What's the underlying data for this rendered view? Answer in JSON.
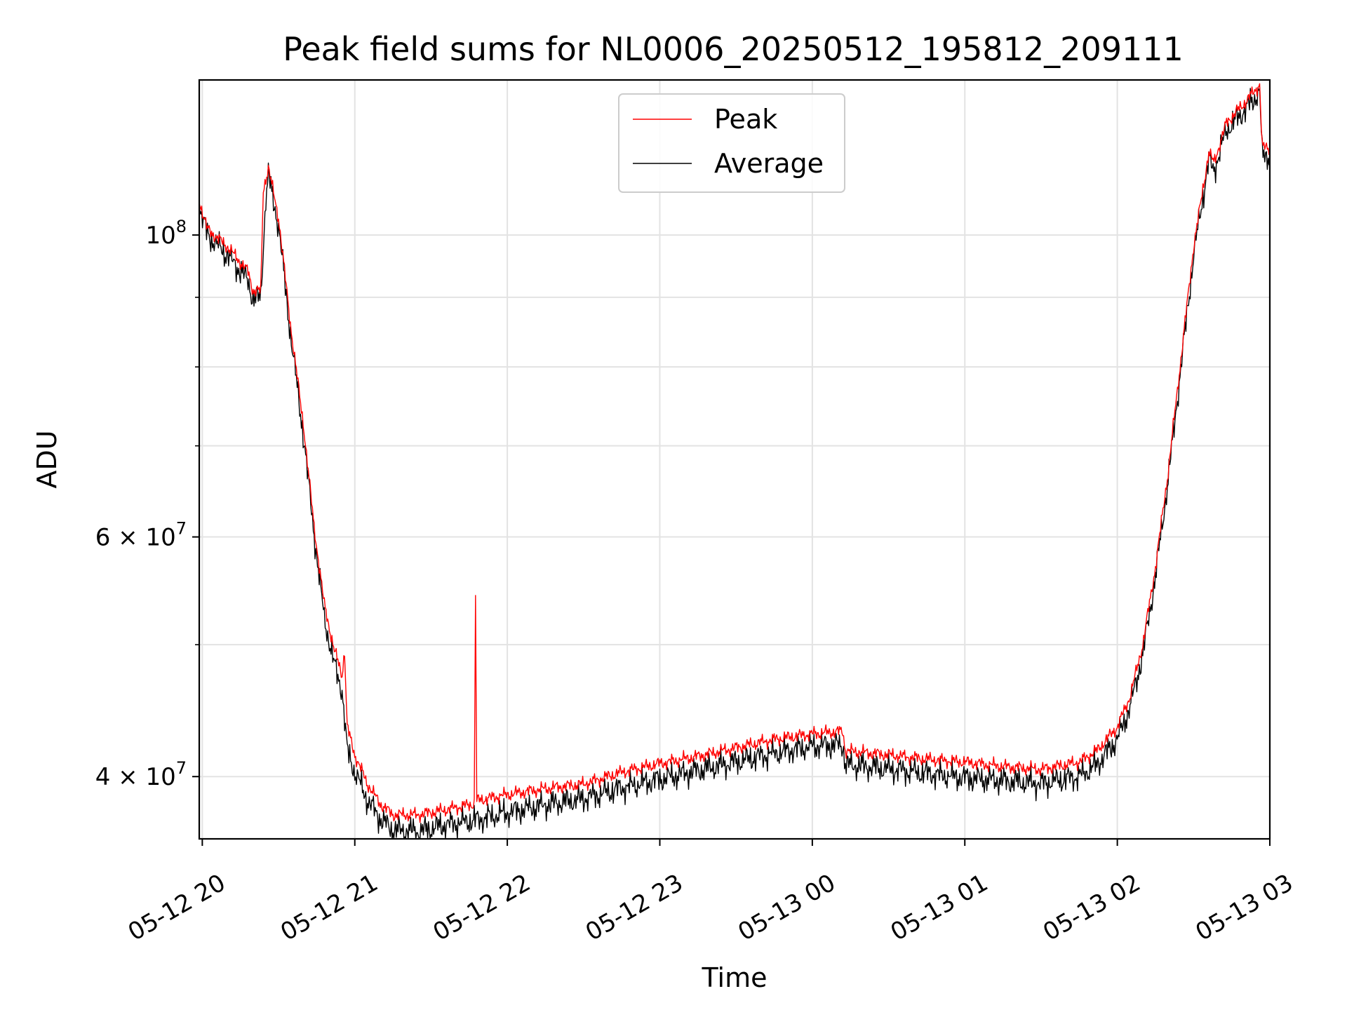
{
  "chart_data": {
    "type": "line",
    "title": "Peak field sums for NL0006_20250512_195812_209111",
    "xlabel": "Time",
    "ylabel": "ADU",
    "yscale": "log",
    "ylim": [
      36000000,
      130000000
    ],
    "xlim": [
      "2025-05-12 19:58:48",
      "2025-05-13 03:00:00"
    ],
    "x_ticks": [
      {
        "t": "2025-05-12 20:00",
        "label": "05-12 20"
      },
      {
        "t": "2025-05-12 21:00",
        "label": "05-12 21"
      },
      {
        "t": "2025-05-12 22:00",
        "label": "05-12 22"
      },
      {
        "t": "2025-05-12 23:00",
        "label": "05-12 23"
      },
      {
        "t": "2025-05-13 00:00",
        "label": "05-13 00"
      },
      {
        "t": "2025-05-13 01:00",
        "label": "05-13 01"
      },
      {
        "t": "2025-05-13 02:00",
        "label": "05-13 02"
      },
      {
        "t": "2025-05-13 03:00",
        "label": "05-13 03"
      }
    ],
    "y_major_ticks": [
      {
        "v": 100000000,
        "base": "10",
        "exp": "8",
        "coef": ""
      },
      {
        "v": 60000000,
        "base": "6 × 10",
        "exp": "7",
        "coef": "6"
      },
      {
        "v": 40000000,
        "base": "4 × 10",
        "exp": "7",
        "coef": "4"
      }
    ],
    "y_minor_ticks": [
      90000000,
      80000000,
      70000000,
      50000000
    ],
    "grid": true,
    "legend_position": "upper center",
    "series": [
      {
        "name": "Peak",
        "color": "#ff0000",
        "points": [
          [
            "2025-05-12 19:58:48",
            106000000
          ],
          [
            "2025-05-12 20:02",
            101000000
          ],
          [
            "2025-05-12 20:10",
            98000000
          ],
          [
            "2025-05-12 20:18",
            94000000
          ],
          [
            "2025-05-12 20:20",
            91000000
          ],
          [
            "2025-05-12 20:23",
            91000000
          ],
          [
            "2025-05-12 20:24",
            108000000
          ],
          [
            "2025-05-12 20:26",
            112000000
          ],
          [
            "2025-05-12 20:30",
            103000000
          ],
          [
            "2025-05-12 20:35",
            85000000
          ],
          [
            "2025-05-12 20:40",
            72000000
          ],
          [
            "2025-05-12 20:44",
            61000000
          ],
          [
            "2025-05-12 20:48",
            53500000
          ],
          [
            "2025-05-12 20:52",
            49500000
          ],
          [
            "2025-05-12 20:55",
            47500000
          ],
          [
            "2025-05-12 20:56",
            49500000
          ],
          [
            "2025-05-12 20:57",
            43500000
          ],
          [
            "2025-05-12 21:00",
            41500000
          ],
          [
            "2025-05-12 21:05",
            39500000
          ],
          [
            "2025-05-12 21:10",
            38200000
          ],
          [
            "2025-05-12 21:15",
            37500000
          ],
          [
            "2025-05-12 21:25",
            37500000
          ],
          [
            "2025-05-12 21:35",
            37800000
          ],
          [
            "2025-05-12 21:47",
            38200000
          ],
          [
            "2025-05-12 21:47:30",
            54500000
          ],
          [
            "2025-05-12 21:48",
            38400000
          ],
          [
            "2025-05-12 22:00",
            38800000
          ],
          [
            "2025-05-12 22:15",
            39200000
          ],
          [
            "2025-05-12 22:30",
            39500000
          ],
          [
            "2025-05-12 22:45",
            40300000
          ],
          [
            "2025-05-12 23:00",
            40900000
          ],
          [
            "2025-05-12 23:15",
            41400000
          ],
          [
            "2025-05-12 23:30",
            42000000
          ],
          [
            "2025-05-12 23:45",
            42600000
          ],
          [
            "2025-05-13 00:00",
            43000000
          ],
          [
            "2025-05-13 00:12",
            43200000
          ],
          [
            "2025-05-13 00:13",
            41800000
          ],
          [
            "2025-05-13 00:30",
            41500000
          ],
          [
            "2025-05-13 00:45",
            41200000
          ],
          [
            "2025-05-13 01:00",
            41000000
          ],
          [
            "2025-05-13 01:15",
            40700000
          ],
          [
            "2025-05-13 01:30",
            40500000
          ],
          [
            "2025-05-13 01:45",
            41000000
          ],
          [
            "2025-05-13 01:52",
            41800000
          ],
          [
            "2025-05-13 02:00",
            43500000
          ],
          [
            "2025-05-13 02:05",
            45800000
          ],
          [
            "2025-05-13 02:10",
            50000000
          ],
          [
            "2025-05-13 02:15",
            57000000
          ],
          [
            "2025-05-13 02:20",
            67000000
          ],
          [
            "2025-05-13 02:25",
            81000000
          ],
          [
            "2025-05-13 02:30",
            98000000
          ],
          [
            "2025-05-13 02:36",
            115000000
          ],
          [
            "2025-05-13 02:38",
            113000000
          ],
          [
            "2025-05-13 02:43",
            121000000
          ],
          [
            "2025-05-13 02:50",
            125000000
          ],
          [
            "2025-05-13 02:56",
            129000000
          ],
          [
            "2025-05-13 02:57",
            116000000
          ],
          [
            "2025-05-13 03:00",
            116000000
          ]
        ]
      },
      {
        "name": "Average",
        "color": "#000000",
        "points": [
          [
            "2025-05-12 19:58:48",
            105500000
          ],
          [
            "2025-05-12 20:02",
            100500000
          ],
          [
            "2025-05-12 20:10",
            97000000
          ],
          [
            "2025-05-12 20:18",
            93000000
          ],
          [
            "2025-05-12 20:20",
            90000000
          ],
          [
            "2025-05-12 20:23",
            90500000
          ],
          [
            "2025-05-12 20:25",
            107000000
          ],
          [
            "2025-05-12 20:26",
            111000000
          ],
          [
            "2025-05-12 20:30",
            102000000
          ],
          [
            "2025-05-12 20:35",
            84000000
          ],
          [
            "2025-05-12 20:40",
            71000000
          ],
          [
            "2025-05-12 20:44",
            60500000
          ],
          [
            "2025-05-12 20:48",
            52500000
          ],
          [
            "2025-05-12 20:52",
            48500000
          ],
          [
            "2025-05-12 20:55",
            46500000
          ],
          [
            "2025-05-12 20:57",
            42000000
          ],
          [
            "2025-05-12 21:00",
            40500000
          ],
          [
            "2025-05-12 21:05",
            38600000
          ],
          [
            "2025-05-12 21:10",
            37400000
          ],
          [
            "2025-05-12 21:15",
            36700000
          ],
          [
            "2025-05-12 21:25",
            36600000
          ],
          [
            "2025-05-12 21:35",
            37000000
          ],
          [
            "2025-05-12 21:50",
            37400000
          ],
          [
            "2025-05-12 22:00",
            37800000
          ],
          [
            "2025-05-12 22:15",
            38300000
          ],
          [
            "2025-05-12 22:30",
            38700000
          ],
          [
            "2025-05-12 22:45",
            39400000
          ],
          [
            "2025-05-12 23:00",
            40000000
          ],
          [
            "2025-05-12 23:15",
            40600000
          ],
          [
            "2025-05-12 23:30",
            41200000
          ],
          [
            "2025-05-12 23:45",
            41800000
          ],
          [
            "2025-05-13 00:00",
            42300000
          ],
          [
            "2025-05-13 00:12",
            42400000
          ],
          [
            "2025-05-13 00:13",
            41000000
          ],
          [
            "2025-05-13 00:30",
            40700000
          ],
          [
            "2025-05-13 00:45",
            40400000
          ],
          [
            "2025-05-13 01:00",
            40100000
          ],
          [
            "2025-05-13 01:15",
            39900000
          ],
          [
            "2025-05-13 01:30",
            39700000
          ],
          [
            "2025-05-13 01:45",
            40200000
          ],
          [
            "2025-05-13 01:52",
            41000000
          ],
          [
            "2025-05-13 02:00",
            42800000
          ],
          [
            "2025-05-13 02:05",
            45200000
          ],
          [
            "2025-05-13 02:10",
            49400000
          ],
          [
            "2025-05-13 02:15",
            56400000
          ],
          [
            "2025-05-13 02:20",
            66400000
          ],
          [
            "2025-05-13 02:25",
            80200000
          ],
          [
            "2025-05-13 02:30",
            97000000
          ],
          [
            "2025-05-13 02:36",
            114000000
          ],
          [
            "2025-05-13 02:38",
            112000000
          ],
          [
            "2025-05-13 02:43",
            120000000
          ],
          [
            "2025-05-13 02:50",
            124000000
          ],
          [
            "2025-05-13 02:56",
            128000000
          ],
          [
            "2025-05-13 02:57",
            115000000
          ],
          [
            "2025-05-13 03:00",
            115000000
          ]
        ]
      }
    ]
  }
}
